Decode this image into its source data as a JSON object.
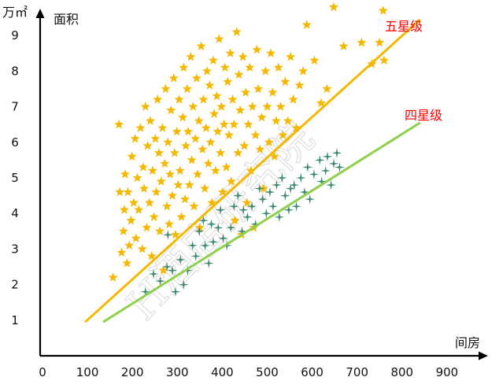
{
  "chart_data": {
    "type": "scatter",
    "title": "",
    "xlabel": "间房",
    "ylabel": "面积",
    "yunit": "万㎡",
    "xlim": [
      0,
      900
    ],
    "ylim": [
      0,
      9.6
    ],
    "x_ticks": [
      "0",
      "100",
      "200",
      "300",
      "400",
      "500",
      "600",
      "700",
      "800",
      "900"
    ],
    "y_ticks": [
      "1",
      "2",
      "3",
      "4",
      "5",
      "6",
      "7",
      "8",
      "9"
    ],
    "grid": false,
    "watermark": "H酒店研究院",
    "colors": {
      "five_star_marker": "#f5b800",
      "five_star_line": "#f5b800",
      "four_star_marker": "#3f8a73",
      "four_star_line": "#8fd14f",
      "label_text": "#ff0000",
      "axis": "#000000"
    },
    "series": [
      {
        "name": "五星级",
        "marker": "star",
        "points": [
          [
            157,
            2.2
          ],
          [
            170,
            6.5
          ],
          [
            172,
            4.6
          ],
          [
            176,
            2.9
          ],
          [
            180,
            3.5
          ],
          [
            182,
            4.1
          ],
          [
            184,
            5.1
          ],
          [
            188,
            2.6
          ],
          [
            190,
            4.6
          ],
          [
            193,
            3.1
          ],
          [
            197,
            3.8
          ],
          [
            199,
            5.6
          ],
          [
            203,
            4.3
          ],
          [
            206,
            6.1
          ],
          [
            208,
            3.3
          ],
          [
            211,
            5.0
          ],
          [
            214,
            4.1
          ],
          [
            218,
            6.4
          ],
          [
            222,
            3.0
          ],
          [
            224,
            5.3
          ],
          [
            226,
            4.7
          ],
          [
            229,
            7.0
          ],
          [
            232,
            3.6
          ],
          [
            234,
            5.9
          ],
          [
            238,
            4.3
          ],
          [
            240,
            6.6
          ],
          [
            243,
            2.8
          ],
          [
            245,
            5.2
          ],
          [
            248,
            3.9
          ],
          [
            251,
            6.1
          ],
          [
            253,
            4.6
          ],
          [
            256,
            7.2
          ],
          [
            259,
            5.7
          ],
          [
            261,
            3.5
          ],
          [
            264,
            4.9
          ],
          [
            267,
            6.4
          ],
          [
            269,
            2.4
          ],
          [
            272,
            5.4
          ],
          [
            274,
            7.5
          ],
          [
            277,
            4.2
          ],
          [
            279,
            6.0
          ],
          [
            282,
            3.7
          ],
          [
            284,
            5.1
          ],
          [
            286,
            6.9
          ],
          [
            289,
            4.5
          ],
          [
            292,
            7.8
          ],
          [
            294,
            5.7
          ],
          [
            296,
            3.4
          ],
          [
            299,
            6.3
          ],
          [
            302,
            4.8
          ],
          [
            304,
            7.2
          ],
          [
            306,
            5.2
          ],
          [
            309,
            3.9
          ],
          [
            312,
            6.7
          ],
          [
            314,
            8.1
          ],
          [
            317,
            4.4
          ],
          [
            319,
            5.9
          ],
          [
            322,
            7.5
          ],
          [
            324,
            6.3
          ],
          [
            327,
            4.8
          ],
          [
            330,
            8.4
          ],
          [
            332,
            5.5
          ],
          [
            335,
            7.0
          ],
          [
            337,
            4.2
          ],
          [
            340,
            6.1
          ],
          [
            343,
            7.8
          ],
          [
            345,
            5.1
          ],
          [
            348,
            6.6
          ],
          [
            350,
            3.6
          ],
          [
            353,
            8.7
          ],
          [
            356,
            5.8
          ],
          [
            358,
            7.2
          ],
          [
            361,
            4.7
          ],
          [
            364,
            6.4
          ],
          [
            366,
            8.0
          ],
          [
            369,
            5.4
          ],
          [
            372,
            7.6
          ],
          [
            374,
            6.0
          ],
          [
            377,
            4.3
          ],
          [
            380,
            8.3
          ],
          [
            382,
            6.8
          ],
          [
            385,
            5.2
          ],
          [
            388,
            7.3
          ],
          [
            390,
            6.3
          ],
          [
            393,
            8.9
          ],
          [
            396,
            5.7
          ],
          [
            398,
            7.0
          ],
          [
            401,
            4.6
          ],
          [
            404,
            6.5
          ],
          [
            406,
            8.1
          ],
          [
            409,
            5.3
          ],
          [
            412,
            7.7
          ],
          [
            415,
            6.2
          ],
          [
            418,
            8.5
          ],
          [
            420,
            4.9
          ],
          [
            423,
            7.2
          ],
          [
            426,
            6.5
          ],
          [
            428,
            3.8
          ],
          [
            432,
            9.1
          ],
          [
            435,
            5.7
          ],
          [
            437,
            7.9
          ],
          [
            440,
            6.9
          ],
          [
            443,
            3.4
          ],
          [
            446,
            8.4
          ],
          [
            449,
            5.9
          ],
          [
            452,
            7.4
          ],
          [
            455,
            4.3
          ],
          [
            458,
            6.5
          ],
          [
            461,
            8.1
          ],
          [
            464,
            5.2
          ],
          [
            467,
            7.0
          ],
          [
            470,
            3.6
          ],
          [
            474,
            6.2
          ],
          [
            477,
            8.6
          ],
          [
            480,
            7.5
          ],
          [
            484,
            5.8
          ],
          [
            488,
            6.7
          ],
          [
            492,
            4.7
          ],
          [
            496,
            8.0
          ],
          [
            500,
            7.0
          ],
          [
            504,
            6.0
          ],
          [
            508,
            8.5
          ],
          [
            512,
            7.4
          ],
          [
            516,
            5.6
          ],
          [
            520,
            6.6
          ],
          [
            525,
            8.1
          ],
          [
            530,
            7.0
          ],
          [
            535,
            6.2
          ],
          [
            540,
            7.7
          ],
          [
            546,
            6.6
          ],
          [
            552,
            8.4
          ],
          [
            558,
            7.2
          ],
          [
            565,
            6.4
          ],
          [
            572,
            7.6
          ],
          [
            580,
            8.0
          ],
          [
            588,
            9.3
          ],
          [
            605,
            8.3
          ],
          [
            620,
            7.1
          ],
          [
            633,
            7.5
          ],
          [
            648,
            9.8
          ],
          [
            670,
            8.7
          ],
          [
            710,
            8.8
          ],
          [
            733,
            8.2
          ],
          [
            750,
            8.8
          ],
          [
            758,
            9.7
          ],
          [
            760,
            8.3
          ]
        ]
      },
      {
        "name": "四星级",
        "marker": "cross-star",
        "points": [
          [
            229,
            1.8
          ],
          [
            247,
            2.3
          ],
          [
            262,
            2.1
          ],
          [
            277,
            2.5
          ],
          [
            279,
            3.4
          ],
          [
            289,
            2.4
          ],
          [
            296,
            1.8
          ],
          [
            307,
            2.7
          ],
          [
            314,
            2.0
          ],
          [
            323,
            2.4
          ],
          [
            334,
            3.1
          ],
          [
            341,
            2.8
          ],
          [
            349,
            3.5
          ],
          [
            358,
            3.8
          ],
          [
            362,
            3.1
          ],
          [
            370,
            2.6
          ],
          [
            376,
            3.7
          ],
          [
            380,
            3.2
          ],
          [
            391,
            3.6
          ],
          [
            396,
            4.1
          ],
          [
            402,
            3.3
          ],
          [
            410,
            3.1
          ],
          [
            419,
            3.6
          ],
          [
            426,
            4.2
          ],
          [
            435,
            4.5
          ],
          [
            444,
            3.5
          ],
          [
            447,
            4.1
          ],
          [
            456,
            3.9
          ],
          [
            466,
            4.2
          ],
          [
            474,
            3.7
          ],
          [
            483,
            4.7
          ],
          [
            490,
            4.4
          ],
          [
            498,
            4.0
          ],
          [
            506,
            4.6
          ],
          [
            513,
            4.2
          ],
          [
            521,
            4.8
          ],
          [
            527,
            3.9
          ],
          [
            533,
            5.0
          ],
          [
            540,
            4.5
          ],
          [
            548,
            4.1
          ],
          [
            552,
            4.7
          ],
          [
            560,
            4.8
          ],
          [
            565,
            4.2
          ],
          [
            575,
            5.0
          ],
          [
            583,
            4.6
          ],
          [
            590,
            5.3
          ],
          [
            595,
            4.4
          ],
          [
            604,
            5.1
          ],
          [
            617,
            5.5
          ],
          [
            621,
            4.9
          ],
          [
            630,
            5.2
          ],
          [
            634,
            5.6
          ],
          [
            642,
            4.8
          ],
          [
            648,
            5.4
          ],
          [
            655,
            5.7
          ],
          [
            661,
            5.3
          ]
        ]
      }
    ],
    "trend_lines": [
      {
        "series": "五星级",
        "from": [
          95,
          0.95
        ],
        "to": [
          840,
          9.45
        ]
      },
      {
        "series": "四星级",
        "from": [
          135,
          0.95
        ],
        "to": [
          840,
          6.55
        ]
      }
    ],
    "series_labels": [
      "五星级",
      "四星级"
    ]
  }
}
